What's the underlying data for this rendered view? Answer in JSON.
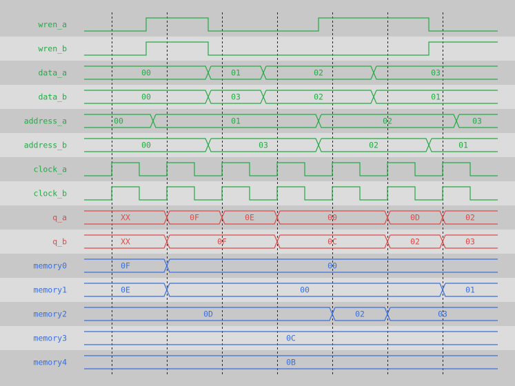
{
  "colors": {
    "input": "#22aa44",
    "output": "#e04848",
    "memory": "#3a6ee0",
    "row_dark": "#c8c8c8",
    "row_light": "#dcdcdc",
    "grid": "#222222"
  },
  "time_range": [
    0,
    30
  ],
  "grid_times": [
    2,
    6,
    10,
    14,
    18,
    22,
    26
  ],
  "signals": [
    {
      "name": "wren_a",
      "kind": "bit",
      "group": "input",
      "initial": 0,
      "edges": [
        4.5,
        9,
        17,
        25
      ]
    },
    {
      "name": "wren_b",
      "kind": "bit",
      "group": "input",
      "initial": 0,
      "edges": [
        4.5,
        9,
        25
      ]
    },
    {
      "name": "data_a",
      "kind": "bus",
      "group": "input",
      "segments": [
        {
          "end": 9,
          "value": "00"
        },
        {
          "end": 13,
          "value": "01"
        },
        {
          "end": 21,
          "value": "02"
        },
        {
          "end": 30,
          "value": "03"
        }
      ]
    },
    {
      "name": "data_b",
      "kind": "bus",
      "group": "input",
      "segments": [
        {
          "end": 9,
          "value": "00"
        },
        {
          "end": 13,
          "value": "03"
        },
        {
          "end": 21,
          "value": "02"
        },
        {
          "end": 30,
          "value": "01"
        }
      ]
    },
    {
      "name": "address_a",
      "kind": "bus",
      "group": "input",
      "segments": [
        {
          "end": 5,
          "value": "00"
        },
        {
          "end": 17,
          "value": "01"
        },
        {
          "end": 27,
          "value": "02"
        },
        {
          "end": 30,
          "value": "03"
        }
      ]
    },
    {
      "name": "address_b",
      "kind": "bus",
      "group": "input",
      "segments": [
        {
          "end": 9,
          "value": "00"
        },
        {
          "end": 17,
          "value": "03"
        },
        {
          "end": 25,
          "value": "02"
        },
        {
          "end": 30,
          "value": "01"
        }
      ]
    },
    {
      "name": "clock_a",
      "kind": "bit",
      "group": "input",
      "initial": 0,
      "edges": [
        2,
        4,
        6,
        8,
        10,
        12,
        14,
        16,
        18,
        20,
        22,
        24,
        26,
        28
      ]
    },
    {
      "name": "clock_b",
      "kind": "bit",
      "group": "input",
      "initial": 0,
      "edges": [
        2,
        4,
        6,
        8,
        10,
        12,
        14,
        16,
        18,
        20,
        22,
        24,
        26,
        28
      ]
    },
    {
      "name": "q_a",
      "kind": "bus",
      "group": "output",
      "segments": [
        {
          "end": 6,
          "value": "XX"
        },
        {
          "end": 10,
          "value": "0F"
        },
        {
          "end": 14,
          "value": "0E"
        },
        {
          "end": 22,
          "value": "00"
        },
        {
          "end": 26,
          "value": "0D"
        },
        {
          "end": 30,
          "value": "02"
        }
      ]
    },
    {
      "name": "q_b",
      "kind": "bus",
      "group": "output",
      "segments": [
        {
          "end": 6,
          "value": "XX"
        },
        {
          "end": 14,
          "value": "0F"
        },
        {
          "end": 22,
          "value": "0C"
        },
        {
          "end": 26,
          "value": "02"
        },
        {
          "end": 30,
          "value": "03"
        }
      ]
    },
    {
      "name": "memory0",
      "kind": "bus",
      "group": "memory",
      "segments": [
        {
          "end": 6,
          "value": "0F"
        },
        {
          "end": 30,
          "value": "00"
        }
      ]
    },
    {
      "name": "memory1",
      "kind": "bus",
      "group": "memory",
      "segments": [
        {
          "end": 6,
          "value": "0E"
        },
        {
          "end": 26,
          "value": "00"
        },
        {
          "end": 30,
          "value": "01"
        }
      ]
    },
    {
      "name": "memory2",
      "kind": "bus",
      "group": "memory",
      "segments": [
        {
          "end": 18,
          "value": "0D"
        },
        {
          "end": 22,
          "value": "02"
        },
        {
          "end": 30,
          "value": "03"
        }
      ]
    },
    {
      "name": "memory3",
      "kind": "bus",
      "group": "memory",
      "segments": [
        {
          "end": 30,
          "value": "0C"
        }
      ]
    },
    {
      "name": "memory4",
      "kind": "bus",
      "group": "memory",
      "segments": [
        {
          "end": 30,
          "value": "0B"
        }
      ]
    }
  ]
}
